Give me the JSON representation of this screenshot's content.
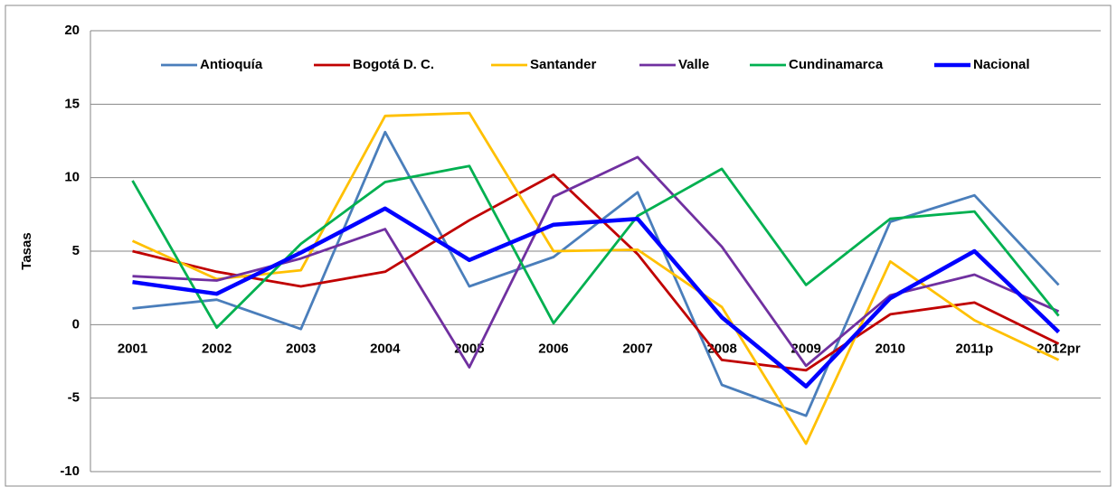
{
  "chart_data": {
    "type": "line",
    "y_label": "Tasas",
    "categories": [
      "2001",
      "2002",
      "2003",
      "2004",
      "2005",
      "2006",
      "2007",
      "2008",
      "2009",
      "2010",
      "2011p",
      "2012pr"
    ],
    "series": [
      {
        "name": "Antioquía",
        "color": "#4a7ebb",
        "values": [
          1.1,
          1.7,
          -0.3,
          13.1,
          2.6,
          4.6,
          9.0,
          -4.1,
          -6.2,
          7.0,
          8.8,
          2.7
        ]
      },
      {
        "name": "Bogotá D. C.",
        "color": "#c00000",
        "values": [
          5.0,
          3.6,
          2.6,
          3.6,
          7.1,
          10.2,
          4.8,
          -2.4,
          -3.1,
          0.7,
          1.5,
          -1.3
        ]
      },
      {
        "name": "Santander",
        "color": "#ffc000",
        "values": [
          5.7,
          3.1,
          3.7,
          14.2,
          14.4,
          5.0,
          5.1,
          1.2,
          -8.1,
          4.3,
          0.3,
          -2.4
        ]
      },
      {
        "name": "Valle",
        "color": "#7030a0",
        "values": [
          3.3,
          3.0,
          4.5,
          6.5,
          -2.9,
          8.7,
          11.4,
          5.3,
          -2.8,
          2.0,
          3.4,
          0.9
        ]
      },
      {
        "name": "Cundinamarca",
        "color": "#00b050",
        "values": [
          9.8,
          -0.2,
          5.5,
          9.7,
          10.8,
          0.1,
          7.4,
          10.6,
          2.7,
          7.2,
          7.7,
          0.6
        ]
      },
      {
        "name": "Nacional",
        "color": "#0000ff",
        "values": [
          2.9,
          2.1,
          4.9,
          7.9,
          4.4,
          6.8,
          7.2,
          0.5,
          -4.2,
          1.8,
          5.0,
          -0.5
        ]
      }
    ],
    "ylim": [
      -10,
      20
    ],
    "yticks": [
      -10,
      -5,
      0,
      5,
      10,
      15,
      20
    ],
    "grid": true,
    "legend": "top"
  }
}
